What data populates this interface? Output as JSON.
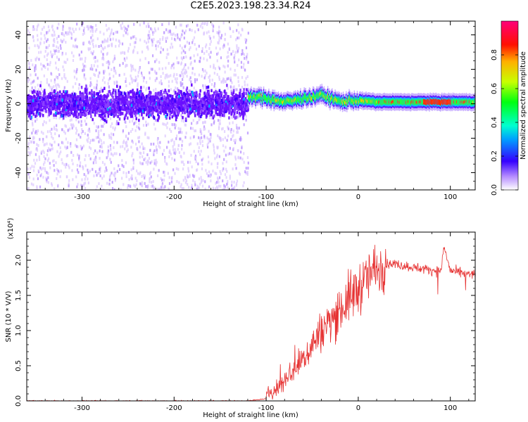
{
  "title": "C2E5.2023.198.23.34.R24",
  "colors": {
    "snr_line": "#e63232",
    "axis": "#000000",
    "spectrogram_background": "#ffffff"
  },
  "chart_data": [
    {
      "type": "heatmap",
      "name": "spectrogram",
      "xlabel": "Height of straight line (km)",
      "ylabel": "Frequency (Hz)",
      "xlim": [
        -360,
        127
      ],
      "ylim": [
        -50,
        48
      ],
      "xticks": [
        -300,
        -200,
        -100,
        0,
        100
      ],
      "xtick_labels": [
        "-300",
        "-200",
        "-100",
        "0",
        "100"
      ],
      "yticks": [
        -40,
        -20,
        0,
        20,
        40
      ],
      "ytick_labels": [
        "-40",
        "-20",
        "0",
        "20",
        "40"
      ],
      "colorbar": {
        "label": "Normalized spectral amplitude",
        "range": [
          0.0,
          1.0
        ],
        "ticks": [
          0.0,
          0.2,
          0.4,
          0.6,
          0.8
        ],
        "tick_labels": [
          "0.0",
          "0.2",
          "0.4",
          "0.6",
          "0.8"
        ],
        "colormap": "rainbow"
      },
      "signal_ridge": {
        "x": [
          -120,
          -110,
          -100,
          -90,
          -80,
          -70,
          -60,
          -50,
          -40,
          -30,
          -20,
          -10,
          0,
          20,
          40,
          60,
          80,
          100,
          127
        ],
        "y": [
          3,
          4,
          3,
          2,
          1,
          2,
          3,
          4,
          5,
          3,
          1,
          2,
          2,
          1,
          1,
          1,
          1,
          1,
          1
        ]
      },
      "noise_region": {
        "x_range": [
          -360,
          -120
        ],
        "band_y": [
          -10,
          10
        ],
        "scatter_y": [
          -50,
          48
        ]
      }
    },
    {
      "type": "line",
      "name": "snr",
      "xlabel": "Height of straight line (km)",
      "ylabel": "SNR (10 * V/V)",
      "y_multiplier": "(x10⁴)",
      "xlim": [
        -360,
        127
      ],
      "ylim": [
        0,
        2.4
      ],
      "xticks": [
        -300,
        -200,
        -100,
        0,
        100
      ],
      "xtick_labels": [
        "-300",
        "-200",
        "-100",
        "0",
        "100"
      ],
      "yticks": [
        0.0,
        0.5,
        1.0,
        1.5,
        2.0
      ],
      "ytick_labels": [
        "0.0",
        "0.5",
        "1.0",
        "1.5",
        "2.0"
      ],
      "series": [
        {
          "name": "SNR",
          "x": [
            -360,
            -300,
            -200,
            -120,
            -100,
            -95,
            -90,
            -80,
            -70,
            -60,
            -50,
            -40,
            -30,
            -20,
            -10,
            0,
            10,
            20,
            30,
            40,
            50,
            60,
            70,
            80,
            90,
            93,
            100,
            110,
            120,
            127
          ],
          "y": [
            0.0,
            0.0,
            0.0,
            0.0,
            0.03,
            0.15,
            0.15,
            0.3,
            0.45,
            0.6,
            0.8,
            1.0,
            1.15,
            1.3,
            1.45,
            1.6,
            1.75,
            1.9,
            1.95,
            1.95,
            1.92,
            1.9,
            1.88,
            1.86,
            1.85,
            2.2,
            1.85,
            1.82,
            1.8,
            1.8
          ]
        }
      ]
    }
  ]
}
